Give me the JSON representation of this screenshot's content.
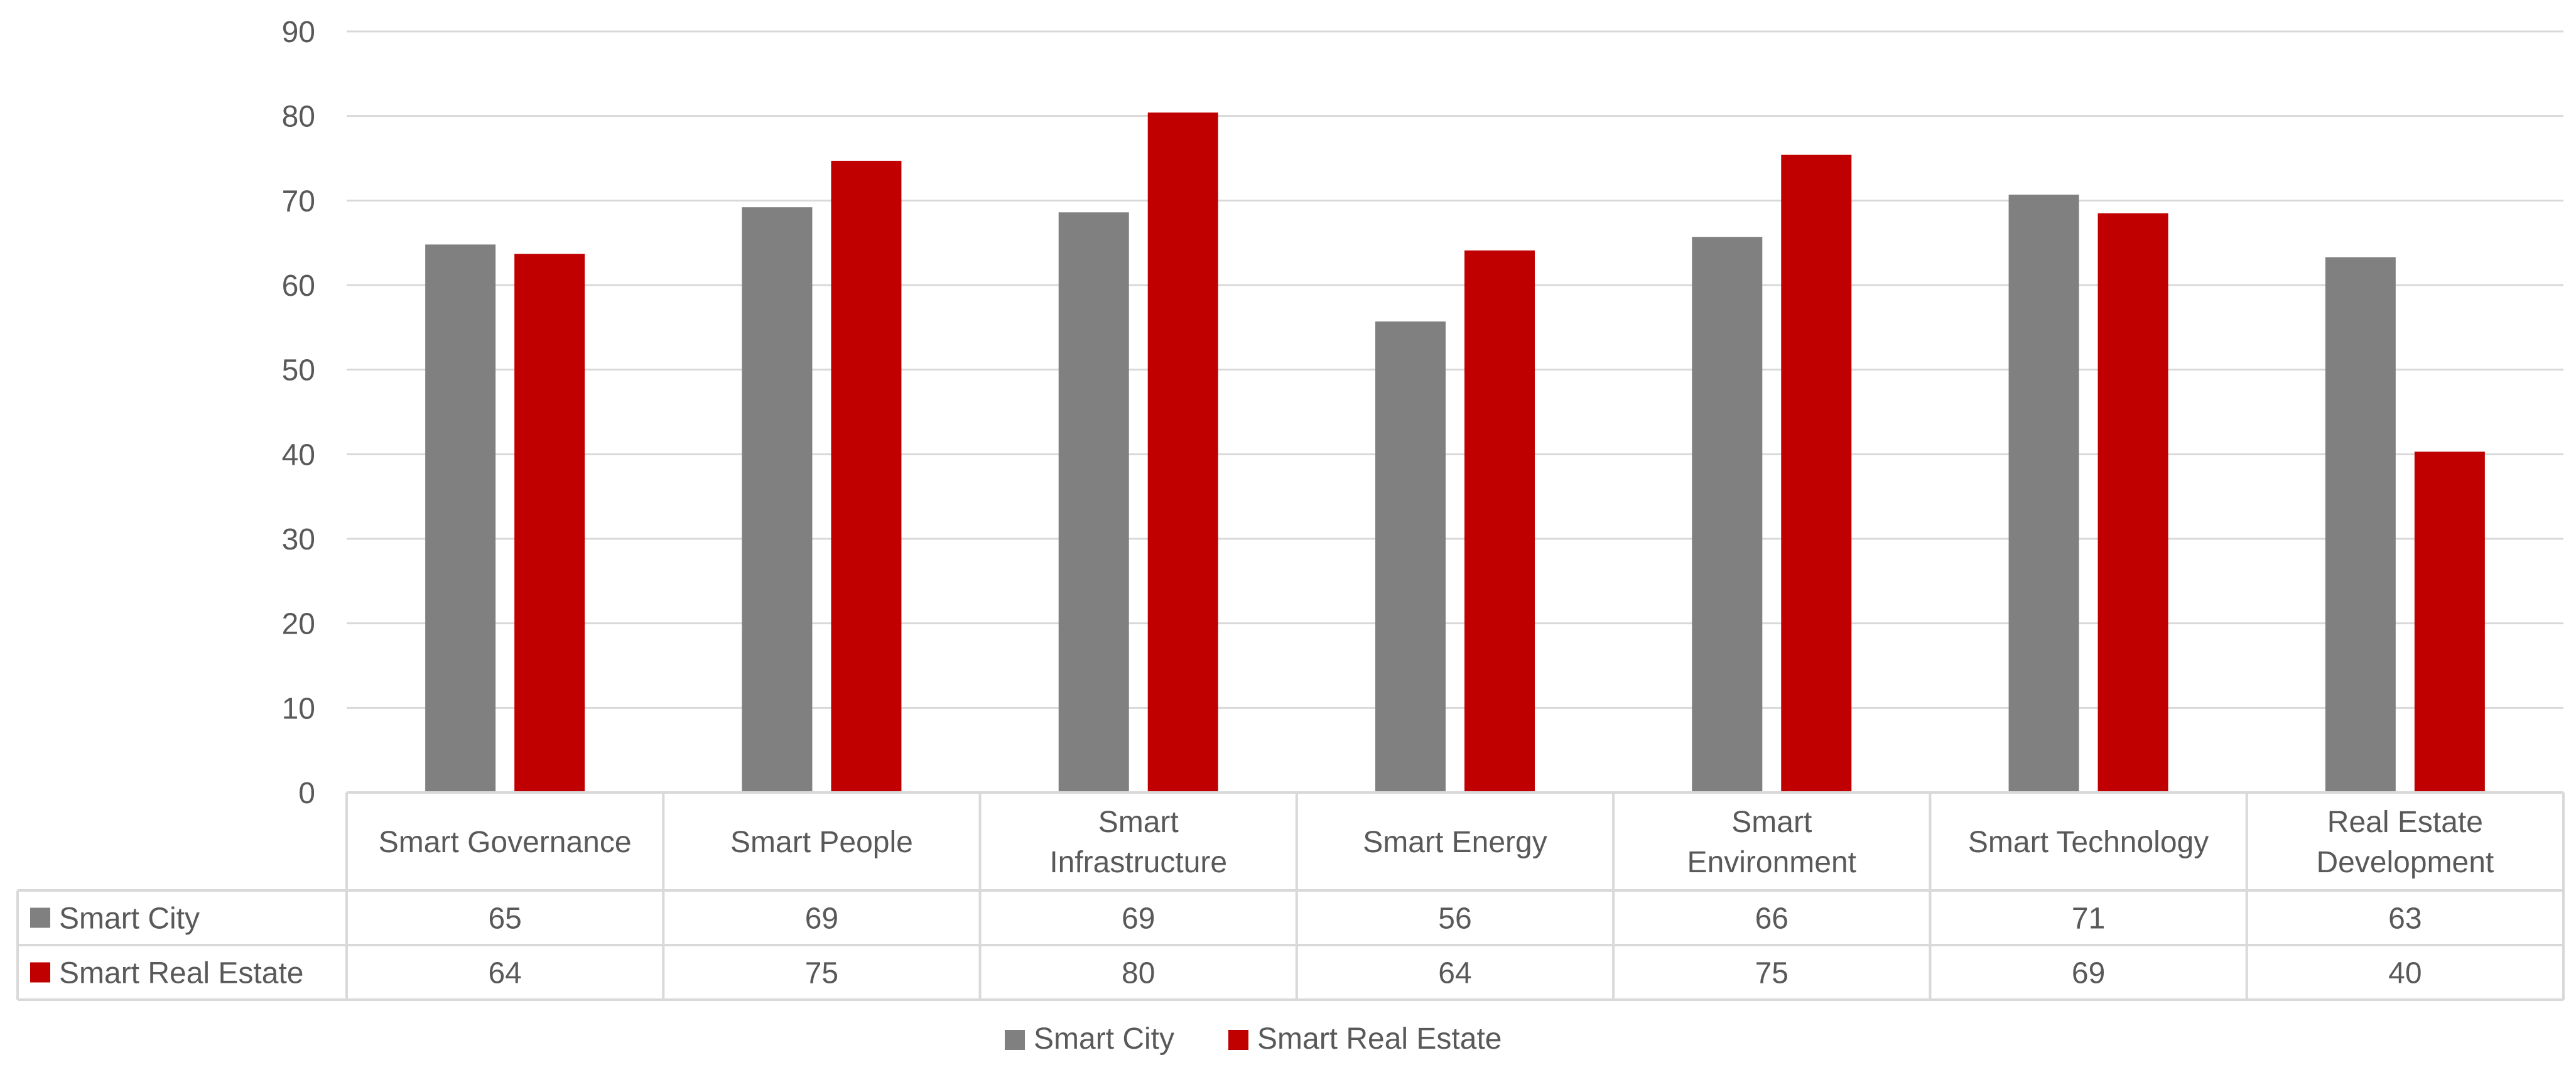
{
  "chart_data": {
    "type": "bar",
    "title": "",
    "xlabel": "",
    "ylabel": "",
    "ylim": [
      0,
      90
    ],
    "ytick_step": 10,
    "grid": true,
    "legend_position": "bottom",
    "data_table": true,
    "categories": [
      [
        "Smart Governance"
      ],
      [
        "Smart People"
      ],
      [
        "Smart",
        "Infrastructure"
      ],
      [
        "Smart Energy"
      ],
      [
        "Smart",
        "Environment"
      ],
      [
        "Smart Technology"
      ],
      [
        "Real Estate",
        "Development"
      ]
    ],
    "series": [
      {
        "name": "Smart City",
        "color": "#808080",
        "values": [
          64.8,
          69.2,
          68.6,
          55.7,
          65.7,
          70.7,
          63.3
        ],
        "labels": [
          "65",
          "69",
          "69",
          "56",
          "66",
          "71",
          "63"
        ]
      },
      {
        "name": "Smart Real Estate",
        "color": "#C00000",
        "values": [
          63.7,
          74.7,
          80.4,
          64.1,
          75.4,
          68.5,
          40.3
        ],
        "labels": [
          "64",
          "75",
          "80",
          "64",
          "75",
          "69",
          "40"
        ]
      }
    ]
  }
}
